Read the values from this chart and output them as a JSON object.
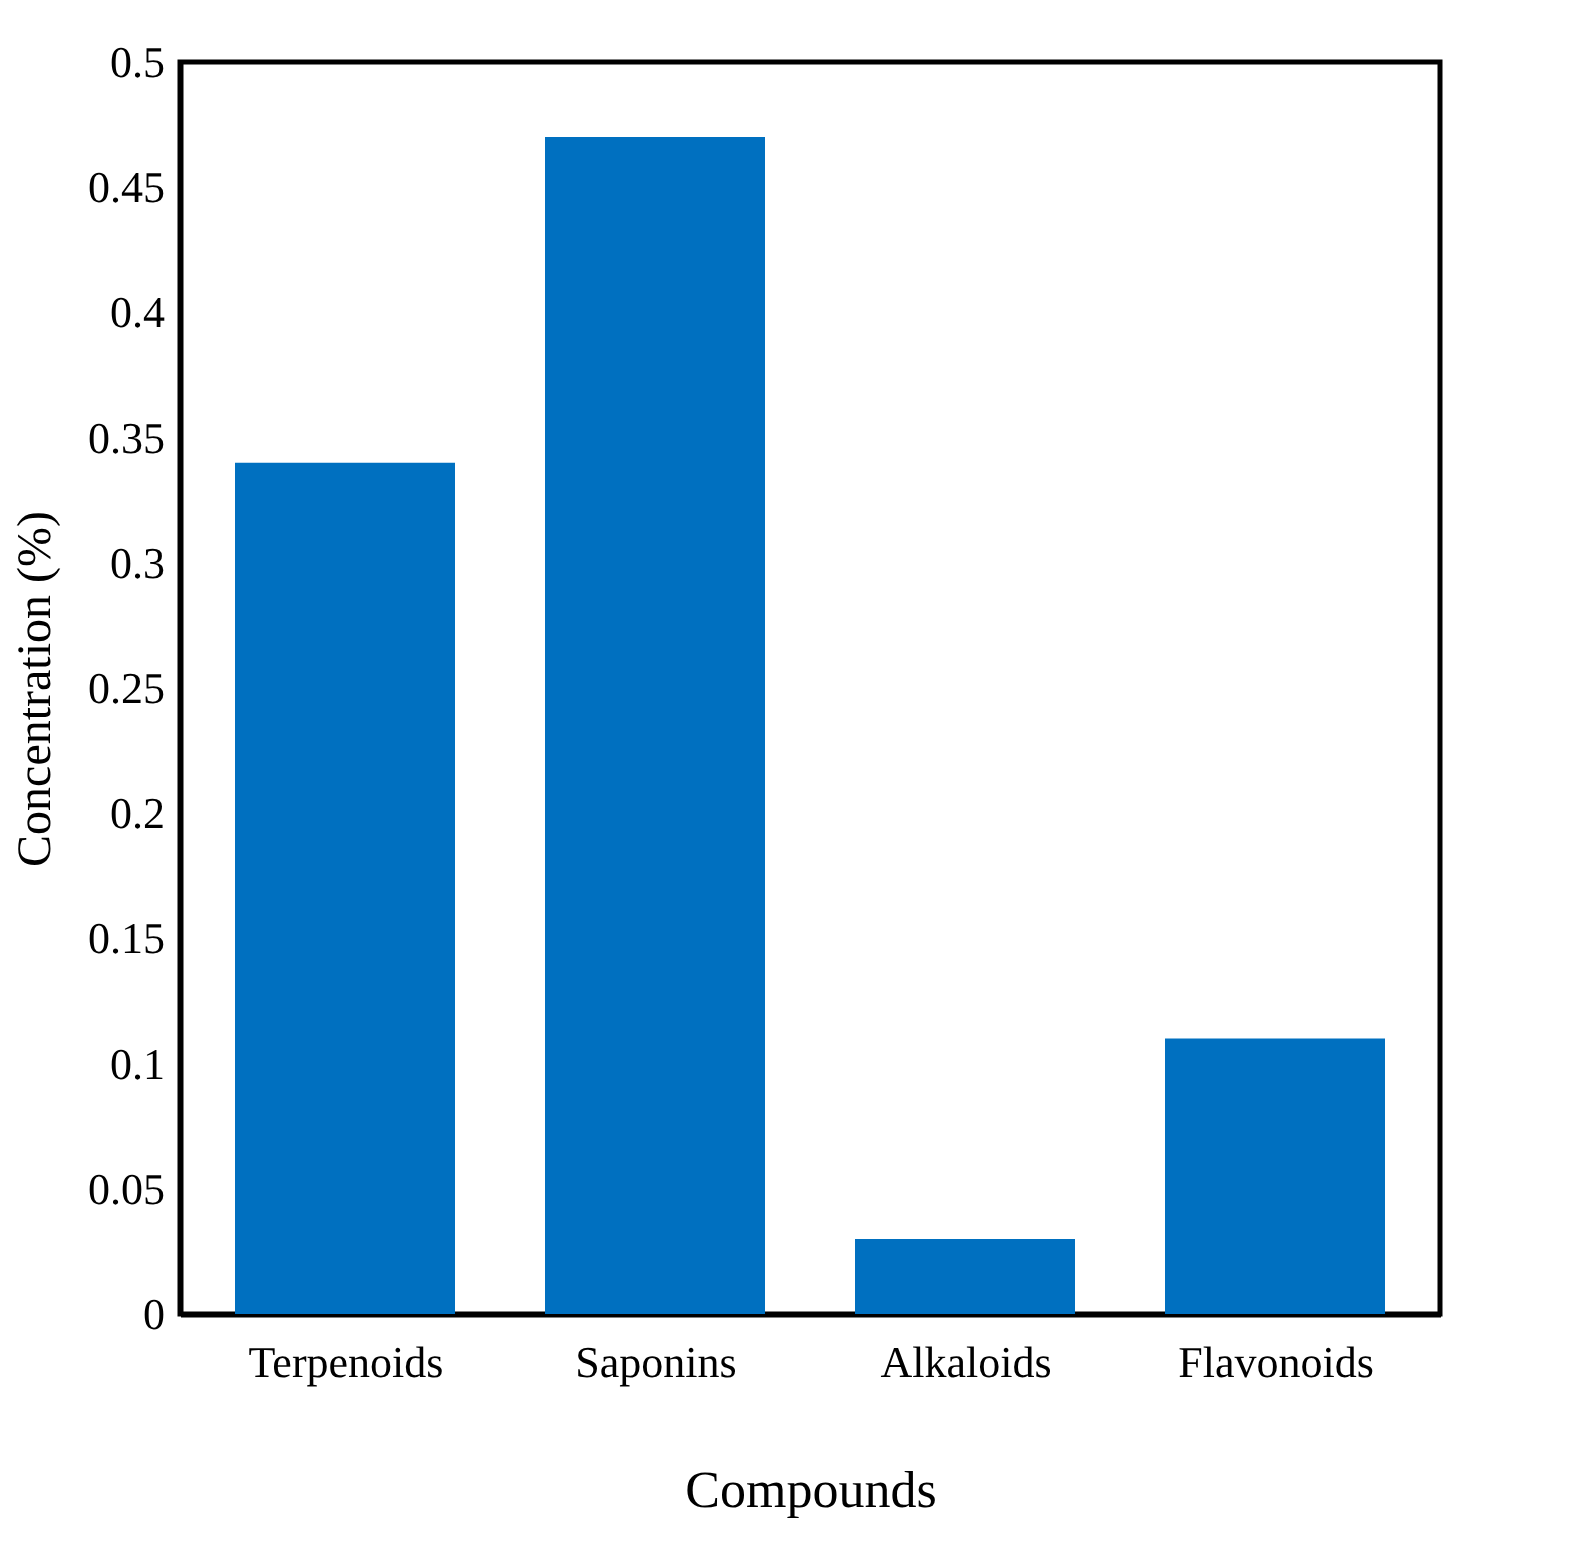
{
  "chart_data": {
    "type": "bar",
    "xlabel": "Compounds",
    "ylabel": "Concentration (%)",
    "categories": [
      "Terpenoids",
      "Saponins",
      "Alkaloids",
      "Flavonoids"
    ],
    "values": [
      0.34,
      0.47,
      0.03,
      0.11
    ],
    "color": "#0070c0",
    "ylim": [
      0,
      0.5
    ],
    "yticks": [
      0,
      0.05,
      0.1,
      0.15,
      0.2,
      0.25,
      0.3,
      0.35,
      0.4,
      0.45,
      0.5
    ],
    "grid": false
  }
}
